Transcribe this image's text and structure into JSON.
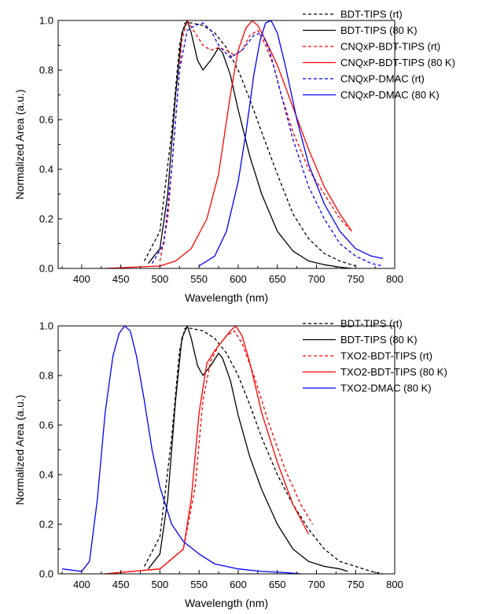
{
  "chart_data": [
    {
      "type": "line",
      "xlabel": "Wavelength (nm)",
      "ylabel": "Normalized Area (a.u.)",
      "xlim": [
        370,
        800
      ],
      "ylim": [
        0,
        1.0
      ],
      "xticks": [
        400,
        450,
        500,
        550,
        600,
        650,
        700,
        750,
        800
      ],
      "yticks": [
        0.0,
        0.2,
        0.4,
        0.6,
        0.8,
        1.0
      ],
      "xtick_labels": [
        "400",
        "450",
        "500",
        "550",
        "600",
        "650",
        "700",
        "750",
        "800"
      ],
      "ytick_labels": [
        "0.0",
        "0.2",
        "0.4",
        "0.6",
        "0.8",
        "1.0"
      ],
      "legend_position": "top-right",
      "series": [
        {
          "name": "BDT-TIPS (rt)",
          "color": "#000000",
          "dash": "dashed",
          "x": [
            480,
            500,
            515,
            525,
            532,
            540,
            555,
            570,
            585,
            600,
            615,
            630,
            650,
            670,
            690,
            710,
            730,
            750
          ],
          "y": [
            0.03,
            0.15,
            0.55,
            0.9,
            0.99,
            0.99,
            0.98,
            0.95,
            0.89,
            0.8,
            0.68,
            0.55,
            0.38,
            0.22,
            0.12,
            0.06,
            0.03,
            0.01
          ]
        },
        {
          "name": "BDT-TIPS (80 K)",
          "color": "#000000",
          "dash": "solid",
          "x": [
            485,
            500,
            510,
            520,
            528,
            535,
            540,
            548,
            555,
            565,
            575,
            580,
            590,
            600,
            615,
            630,
            650,
            670,
            690,
            710,
            730,
            745
          ],
          "y": [
            0.02,
            0.08,
            0.3,
            0.7,
            0.95,
            1.0,
            0.95,
            0.84,
            0.8,
            0.84,
            0.89,
            0.87,
            0.78,
            0.64,
            0.45,
            0.3,
            0.15,
            0.07,
            0.03,
            0.015,
            0.005,
            0.0
          ]
        },
        {
          "name": "CNQxP-BDT-TIPS (rt)",
          "color": "#ff0000",
          "dash": "dashed",
          "x": [
            500,
            510,
            520,
            528,
            535,
            545,
            555,
            565,
            575,
            585,
            595,
            605,
            615,
            625,
            635,
            645,
            655,
            670,
            690,
            710,
            730,
            745
          ],
          "y": [
            0.03,
            0.2,
            0.6,
            0.92,
            1.0,
            0.95,
            0.9,
            0.88,
            0.89,
            0.88,
            0.86,
            0.88,
            0.94,
            0.96,
            0.9,
            0.82,
            0.7,
            0.55,
            0.4,
            0.3,
            0.2,
            0.15
          ]
        },
        {
          "name": "CNQxP-BDT-TIPS (80 K)",
          "color": "#ff0000",
          "dash": "solid",
          "x": [
            430,
            500,
            520,
            540,
            560,
            575,
            590,
            600,
            610,
            618,
            625,
            635,
            650,
            670,
            690,
            710,
            730,
            745
          ],
          "y": [
            0.0,
            0.01,
            0.03,
            0.08,
            0.2,
            0.38,
            0.7,
            0.88,
            0.97,
            1.0,
            0.98,
            0.92,
            0.82,
            0.65,
            0.48,
            0.33,
            0.22,
            0.15
          ]
        },
        {
          "name": "CNQxP-DMAC (rt)",
          "color": "#0000ff",
          "dash": "dashed",
          "x": [
            490,
            505,
            515,
            525,
            535,
            545,
            555,
            565,
            575,
            590,
            605,
            620,
            630,
            640,
            655,
            670,
            690,
            710,
            730,
            750,
            770,
            785
          ],
          "y": [
            0.02,
            0.1,
            0.4,
            0.8,
            0.96,
            0.98,
            0.99,
            0.96,
            0.9,
            0.85,
            0.88,
            0.94,
            0.95,
            0.88,
            0.7,
            0.52,
            0.33,
            0.2,
            0.1,
            0.05,
            0.02,
            0.01
          ]
        },
        {
          "name": "CNQxP-DMAC (80 K)",
          "color": "#0000ff",
          "dash": "solid",
          "x": [
            550,
            570,
            585,
            600,
            610,
            620,
            628,
            635,
            642,
            650,
            660,
            675,
            690,
            710,
            730,
            750,
            770,
            785
          ],
          "y": [
            0.01,
            0.05,
            0.15,
            0.35,
            0.55,
            0.78,
            0.92,
            0.99,
            1.0,
            0.95,
            0.82,
            0.6,
            0.42,
            0.26,
            0.15,
            0.08,
            0.05,
            0.04
          ]
        }
      ]
    },
    {
      "type": "line",
      "xlabel": "Wavelength (nm)",
      "ylabel": "Normalized Area (a.u.)",
      "xlim": [
        370,
        800
      ],
      "ylim": [
        0,
        1.0
      ],
      "xticks": [
        400,
        450,
        500,
        550,
        600,
        650,
        700,
        750,
        800
      ],
      "yticks": [
        0.0,
        0.2,
        0.4,
        0.6,
        0.8,
        1.0
      ],
      "xtick_labels": [
        "400",
        "450",
        "500",
        "550",
        "600",
        "650",
        "700",
        "750",
        "800"
      ],
      "ytick_labels": [
        "0.0",
        "0.2",
        "0.4",
        "0.6",
        "0.8",
        "1.0"
      ],
      "legend_position": "top-right",
      "series": [
        {
          "name": "BDT-TIPS (rt)",
          "color": "#000000",
          "dash": "dashed",
          "x": [
            480,
            500,
            515,
            525,
            532,
            540,
            555,
            570,
            585,
            600,
            615,
            630,
            650,
            670,
            690,
            710,
            730,
            750,
            770,
            785
          ],
          "y": [
            0.03,
            0.15,
            0.55,
            0.9,
            0.99,
            0.99,
            0.98,
            0.95,
            0.89,
            0.8,
            0.68,
            0.55,
            0.4,
            0.28,
            0.18,
            0.1,
            0.05,
            0.03,
            0.01,
            0.0
          ]
        },
        {
          "name": "BDT-TIPS (80 K)",
          "color": "#000000",
          "dash": "solid",
          "x": [
            485,
            500,
            510,
            520,
            528,
            535,
            540,
            548,
            555,
            565,
            575,
            580,
            590,
            600,
            615,
            630,
            650,
            670,
            690,
            710,
            730,
            740
          ],
          "y": [
            0.02,
            0.08,
            0.3,
            0.7,
            0.95,
            1.0,
            0.95,
            0.84,
            0.8,
            0.84,
            0.89,
            0.87,
            0.78,
            0.64,
            0.47,
            0.34,
            0.2,
            0.1,
            0.05,
            0.03,
            0.02,
            0.01
          ]
        },
        {
          "name": "TXO2-BDT-TIPS (rt)",
          "color": "#ff0000",
          "dash": "dashed",
          "x": [
            430,
            500,
            530,
            545,
            555,
            565,
            575,
            585,
            595,
            605,
            620,
            640,
            660,
            680,
            695
          ],
          "y": [
            0.0,
            0.02,
            0.1,
            0.35,
            0.7,
            0.86,
            0.92,
            0.96,
            0.98,
            0.93,
            0.8,
            0.6,
            0.42,
            0.28,
            0.2
          ]
        },
        {
          "name": "TXO2-BDT-TIPS (80 K)",
          "color": "#ff0000",
          "dash": "solid",
          "x": [
            430,
            500,
            530,
            540,
            550,
            560,
            570,
            580,
            590,
            597,
            605,
            615,
            630,
            650,
            670,
            690
          ],
          "y": [
            0.0,
            0.02,
            0.1,
            0.3,
            0.65,
            0.85,
            0.9,
            0.94,
            0.98,
            1.0,
            0.96,
            0.85,
            0.65,
            0.45,
            0.28,
            0.16
          ]
        },
        {
          "name": "TXO2-DMAC (80 K)",
          "color": "#0000ff",
          "dash": "solid",
          "x": [
            375,
            400,
            410,
            420,
            430,
            440,
            448,
            455,
            462,
            470,
            480,
            490,
            500,
            515,
            530,
            550,
            570,
            600,
            630,
            660,
            680
          ],
          "y": [
            0.02,
            0.01,
            0.05,
            0.3,
            0.65,
            0.88,
            0.97,
            1.0,
            0.98,
            0.88,
            0.7,
            0.5,
            0.35,
            0.2,
            0.13,
            0.08,
            0.04,
            0.02,
            0.01,
            0.005,
            0.0
          ]
        }
      ]
    }
  ]
}
